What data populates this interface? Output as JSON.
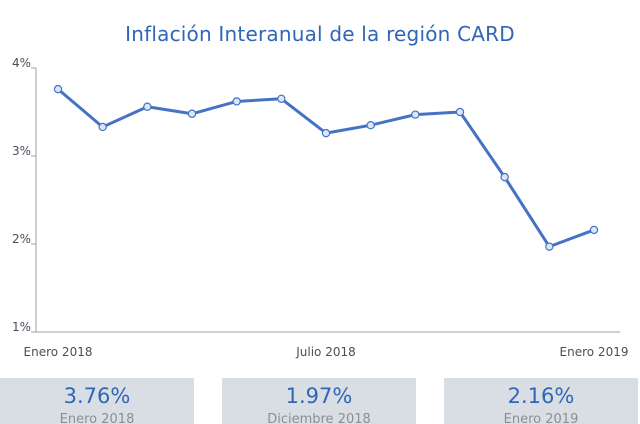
{
  "chart_data": {
    "type": "line",
    "title": "Inflación Interanual de la región CARD",
    "y_ticks": [
      "4%",
      "3%",
      "2%",
      "1%"
    ],
    "y_tick_values": [
      4,
      3,
      2,
      1
    ],
    "ylim": [
      1,
      4
    ],
    "x_tick_labels": [
      "Enero 2018",
      "Julio 2018",
      "Enero 2019"
    ],
    "x": [
      "2018-01",
      "2018-02",
      "2018-03",
      "2018-04",
      "2018-05",
      "2018-06",
      "2018-07",
      "2018-08",
      "2018-09",
      "2018-10",
      "2018-11",
      "2018-12",
      "2019-01"
    ],
    "series": [
      {
        "values": [
          3.76,
          3.33,
          3.56,
          3.48,
          3.62,
          3.65,
          3.26,
          3.35,
          3.47,
          3.5,
          2.76,
          1.97,
          2.16
        ],
        "color": "#4472c4"
      }
    ],
    "grid": false
  },
  "cards": [
    {
      "value": "3.76%",
      "label": "Enero 2018"
    },
    {
      "value": "1.97%",
      "label": "Diciembre 2018"
    },
    {
      "value": "2.16%",
      "label": "Enero 2019"
    }
  ]
}
